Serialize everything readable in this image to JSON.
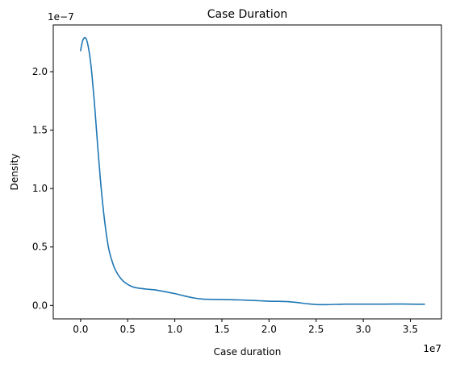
{
  "chart_data": {
    "type": "line",
    "title": "Case Duration",
    "xlabel": "Case duration",
    "ylabel": "Density",
    "x_offset_label": "1e7",
    "y_offset_label": "1e−7",
    "x_scale": 10000000,
    "y_scale": 1e-07,
    "xlim": [
      -2900000,
      38300000
    ],
    "ylim": [
      -1.15e-08,
      2.4e-07
    ],
    "x_ticks": [
      {
        "value": 0,
        "label": "0.0"
      },
      {
        "value": 5000000,
        "label": "0.5"
      },
      {
        "value": 10000000,
        "label": "1.0"
      },
      {
        "value": 15000000,
        "label": "1.5"
      },
      {
        "value": 20000000,
        "label": "2.0"
      },
      {
        "value": 25000000,
        "label": "2.5"
      },
      {
        "value": 30000000,
        "label": "3.0"
      },
      {
        "value": 35000000,
        "label": "3.5"
      }
    ],
    "y_ticks": [
      {
        "value": 0,
        "label": "0.0"
      },
      {
        "value": 5e-08,
        "label": "0.5"
      },
      {
        "value": 1e-07,
        "label": "1.0"
      },
      {
        "value": 1.5e-07,
        "label": "1.5"
      },
      {
        "value": 2e-07,
        "label": "2.0"
      }
    ],
    "grid": false,
    "series": [
      {
        "color": "#1f77b4",
        "x": [
          0,
          200000,
          400000,
          600000,
          800000,
          1000000,
          1200000,
          1500000,
          1800000,
          2100000,
          2400000,
          2700000,
          3000000,
          3300000,
          3600000,
          4000000,
          4500000,
          5000000,
          5500000,
          6000000,
          7000000,
          8000000,
          9000000,
          10000000,
          11000000,
          12000000,
          13000000,
          14000000,
          15000000,
          16000000,
          17000000,
          18000000,
          19000000,
          20000000,
          21000000,
          22000000,
          23000000,
          24000000,
          25000000,
          26000000,
          27000000,
          28000000,
          29000000,
          30000000,
          31000000,
          32000000,
          33000000,
          34000000,
          35000000,
          36500000
        ],
        "y": [
          2.18e-07,
          2.26e-07,
          2.29e-07,
          2.28e-07,
          2.22e-07,
          2.12e-07,
          1.98e-07,
          1.7e-07,
          1.38e-07,
          1.08e-07,
          8.3e-08,
          6.3e-08,
          4.8e-08,
          3.9e-08,
          3.2e-08,
          2.6e-08,
          2.1e-08,
          1.8e-08,
          1.6e-08,
          1.5e-08,
          1.4e-08,
          1.32e-08,
          1.17e-08,
          1.01e-08,
          8.2e-09,
          6.4e-09,
          5.4e-09,
          5.2e-09,
          5.1e-09,
          4.9e-09,
          4.7e-09,
          4.4e-09,
          4e-09,
          3.6e-09,
          3.5e-09,
          3.3e-09,
          2.5e-09,
          1.5e-09,
          8e-10,
          7e-10,
          9e-10,
          1.1e-09,
          1.1e-09,
          1.1e-09,
          1.1e-09,
          1.1e-09,
          1.2e-09,
          1.2e-09,
          1.1e-09,
          1e-09
        ]
      }
    ]
  }
}
